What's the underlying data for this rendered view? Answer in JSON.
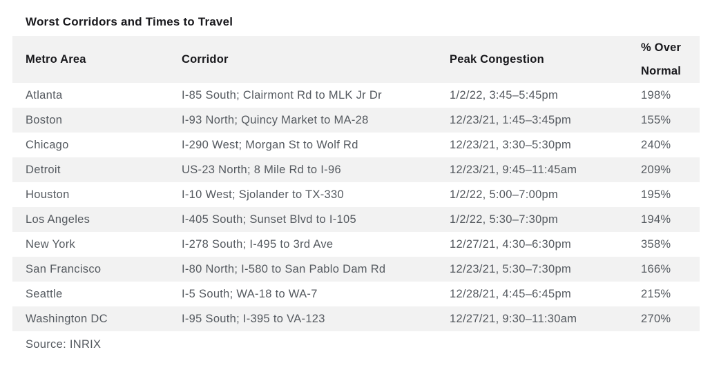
{
  "chart_data": {
    "type": "table",
    "title": "Worst Corridors and Times to Travel",
    "column_headers": [
      "Metro Area",
      "Corridor",
      "Peak Congestion",
      "% Over Normal"
    ],
    "rows": [
      [
        "Atlanta",
        "I-85 South; Clairmont Rd to MLK Jr Dr",
        "1/2/22, 3:45–5:45pm",
        "198%"
      ],
      [
        "Boston",
        "I-93 North; Quincy Market to MA-28",
        "12/23/21, 1:45–3:45pm",
        "155%"
      ],
      [
        "Chicago",
        "I-290 West; Morgan St to Wolf Rd",
        "12/23/21, 3:30–5:30pm",
        "240%"
      ],
      [
        "Detroit",
        "US-23 North; 8 Mile Rd to I-96",
        "12/23/21, 9:45–11:45am",
        "209%"
      ],
      [
        "Houston",
        "I-10 West; Sjolander to TX-330",
        "1/2/22, 5:00–7:00pm",
        "195%"
      ],
      [
        "Los Angeles",
        "I-405 South; Sunset Blvd to I-105",
        "1/2/22, 5:30–7:30pm",
        "194%"
      ],
      [
        "New York",
        "I-278 South; I-495 to 3rd Ave",
        "12/27/21, 4:30–6:30pm",
        "358%"
      ],
      [
        "San Francisco",
        "I-80 North; I-580 to San Pablo Dam Rd",
        "12/23/21, 5:30–7:30pm",
        "166%"
      ],
      [
        "Seattle",
        "I-5 South; WA-18 to WA-7",
        "12/28/21, 4:45–6:45pm",
        "215%"
      ],
      [
        "Washington DC",
        "I-95 South; I-395 to VA-123",
        "12/27/21, 9:30–11:30am",
        "270%"
      ]
    ],
    "source": "Source: INRIX",
    "layout": {
      "striped": true,
      "stripe_rows": "even",
      "header_background": true
    }
  },
  "pct_header_lines": [
    "% Over",
    "Normal"
  ],
  "colors": {
    "stripe_background": "#f2f2f2",
    "header_text": "#19191d",
    "body_text": "#54595f",
    "page_background": "#ffffff"
  }
}
